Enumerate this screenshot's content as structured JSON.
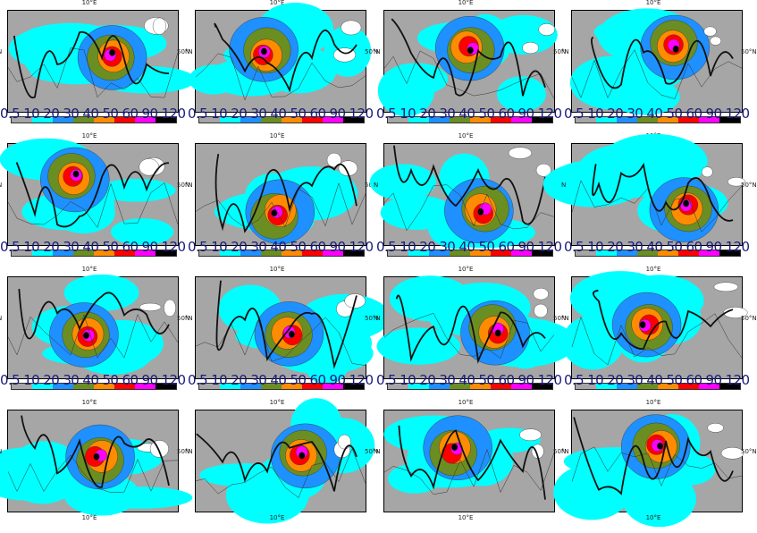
{
  "map": {
    "lon_label": "10°E",
    "lat_label_left": "N",
    "lat_label_right": "50°N",
    "colorbar_ticks": [
      "0.5",
      "10",
      "20",
      "30",
      "40",
      "50",
      "60",
      "90",
      "120"
    ],
    "colorbar_colors": [
      "#a6a6a6",
      "#00ffff",
      "#1e90ff",
      "#6b8e23",
      "#ff8c00",
      "#ff0000",
      "#ff00ff",
      "#000000"
    ],
    "colorbar_tick_text": "0.5 10 20 30 40 50 60 90 120",
    "rows": 4,
    "cols": 4
  }
}
